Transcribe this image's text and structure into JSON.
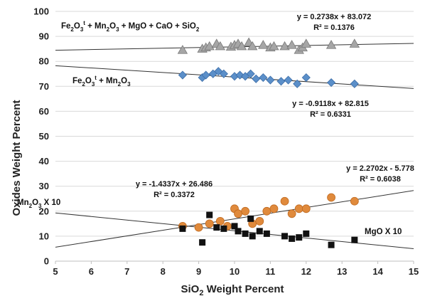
{
  "chart_data": {
    "type": "scatter",
    "xlabel": "SiO",
    "xlabel_sub": "2",
    "xlabel_tail": " Weight Percent",
    "ylabel": "Oxides Weight Percent",
    "xlim": [
      5,
      15
    ],
    "ylim": [
      0,
      100
    ],
    "x_ticks": [
      "5",
      "6",
      "7",
      "8",
      "9",
      "10",
      "11",
      "12",
      "13",
      "14",
      "15"
    ],
    "y_ticks": [
      "0",
      "10",
      "20",
      "30",
      "40",
      "50",
      "60",
      "70",
      "80",
      "90",
      "100"
    ],
    "grid": "horizontal",
    "series": [
      {
        "name": "Fe2O3t + Mn2O3 + MgO + CaO + SiO2",
        "label_parts": [
          [
            "Fe",
            ""
          ],
          [
            "2",
            "sub"
          ],
          [
            "O",
            ""
          ],
          [
            "3",
            "sub"
          ],
          [
            "t",
            "sup"
          ],
          [
            " + Mn",
            ""
          ],
          [
            "2",
            "sub"
          ],
          [
            "O",
            ""
          ],
          [
            "3",
            "sub"
          ],
          [
            " + MgO + CaO + SiO",
            ""
          ],
          [
            "2",
            "sub"
          ]
        ],
        "marker": "triangle",
        "color": "#a6a6a6",
        "points": [
          [
            8.55,
            84.5
          ],
          [
            9.1,
            85
          ],
          [
            9.2,
            85.5
          ],
          [
            9.3,
            86
          ],
          [
            9.5,
            87
          ],
          [
            9.6,
            86
          ],
          [
            9.9,
            85.8
          ],
          [
            10.0,
            86.5
          ],
          [
            10.1,
            87
          ],
          [
            10.2,
            86
          ],
          [
            10.4,
            87.5
          ],
          [
            10.5,
            86
          ],
          [
            10.8,
            86.5
          ],
          [
            11.0,
            85.5
          ],
          [
            11.1,
            86
          ],
          [
            11.4,
            86
          ],
          [
            11.6,
            86.5
          ],
          [
            11.8,
            84.5
          ],
          [
            11.9,
            85.5
          ],
          [
            12.0,
            87
          ],
          [
            12.7,
            86.5
          ],
          [
            13.35,
            87
          ]
        ],
        "trendline": {
          "slope": 0.2738,
          "intercept": 83.072,
          "equation": "y = 0.2738x + 83.072",
          "r2": "R² = 0.1376"
        }
      },
      {
        "name": "Fe2O3t + Mn2O3",
        "label_parts": [
          [
            "Fe",
            ""
          ],
          [
            "2",
            "sub"
          ],
          [
            "O",
            ""
          ],
          [
            "3",
            "sub"
          ],
          [
            "t",
            "sup"
          ],
          [
            " + Mn",
            ""
          ],
          [
            "2",
            "sub"
          ],
          [
            "O",
            ""
          ],
          [
            "3",
            "sub"
          ]
        ],
        "marker": "diamond",
        "color": "#5b8fc9",
        "points": [
          [
            8.55,
            74.5
          ],
          [
            9.1,
            73.5
          ],
          [
            9.2,
            74.5
          ],
          [
            9.4,
            75
          ],
          [
            9.55,
            76
          ],
          [
            9.7,
            75
          ],
          [
            10.0,
            74
          ],
          [
            10.15,
            74.5
          ],
          [
            10.3,
            74
          ],
          [
            10.45,
            75
          ],
          [
            10.6,
            73
          ],
          [
            10.8,
            73.5
          ],
          [
            11.0,
            72.5
          ],
          [
            11.3,
            72
          ],
          [
            11.5,
            72.5
          ],
          [
            11.75,
            71
          ],
          [
            12.0,
            73.5
          ],
          [
            12.7,
            71.5
          ],
          [
            13.35,
            71
          ]
        ],
        "trendline": {
          "slope": -0.9118,
          "intercept": 82.815,
          "equation": "y = -0.9118x + 82.815",
          "r2": "R² = 0.6331"
        }
      },
      {
        "name": "MgO X 10",
        "label_parts": [
          [
            "MgO X 10",
            ""
          ]
        ],
        "marker": "circle",
        "color": "#e08a3c",
        "points": [
          [
            8.55,
            14
          ],
          [
            9.0,
            13.5
          ],
          [
            9.3,
            15
          ],
          [
            9.6,
            16
          ],
          [
            9.8,
            14
          ],
          [
            10.0,
            21
          ],
          [
            10.1,
            19
          ],
          [
            10.3,
            20
          ],
          [
            10.5,
            15
          ],
          [
            10.7,
            16
          ],
          [
            10.9,
            20
          ],
          [
            11.1,
            21
          ],
          [
            11.4,
            24
          ],
          [
            11.6,
            19
          ],
          [
            11.8,
            21
          ],
          [
            12.0,
            21
          ],
          [
            12.7,
            25.5
          ],
          [
            13.35,
            24
          ]
        ],
        "trendline": {
          "slope": 2.2702,
          "intercept": -5.778,
          "equation": "y = 2.2702x - 5.778",
          "r2": "R² = 0.6038"
        }
      },
      {
        "name": "Mn2O3 X 10",
        "label_parts": [
          [
            "Mn",
            ""
          ],
          [
            "2",
            "sub"
          ],
          [
            "O",
            ""
          ],
          [
            "3",
            "sub"
          ],
          [
            " X 10",
            ""
          ]
        ],
        "marker": "square",
        "color": "#111111",
        "points": [
          [
            8.55,
            13
          ],
          [
            9.1,
            7.5
          ],
          [
            9.3,
            18.5
          ],
          [
            9.5,
            13.5
          ],
          [
            9.7,
            13
          ],
          [
            10.0,
            14
          ],
          [
            10.1,
            12
          ],
          [
            10.3,
            11
          ],
          [
            10.45,
            17
          ],
          [
            10.5,
            10
          ],
          [
            10.7,
            12
          ],
          [
            10.9,
            11
          ],
          [
            11.4,
            10
          ],
          [
            11.6,
            9
          ],
          [
            11.8,
            9.5
          ],
          [
            12.0,
            11
          ],
          [
            12.7,
            6.5
          ],
          [
            13.35,
            8.5
          ]
        ],
        "trendline": {
          "slope": -1.4337,
          "intercept": 26.486,
          "equation": "y = -1.4337x + 26.486",
          "r2": "R² = 0.3372"
        }
      }
    ]
  }
}
